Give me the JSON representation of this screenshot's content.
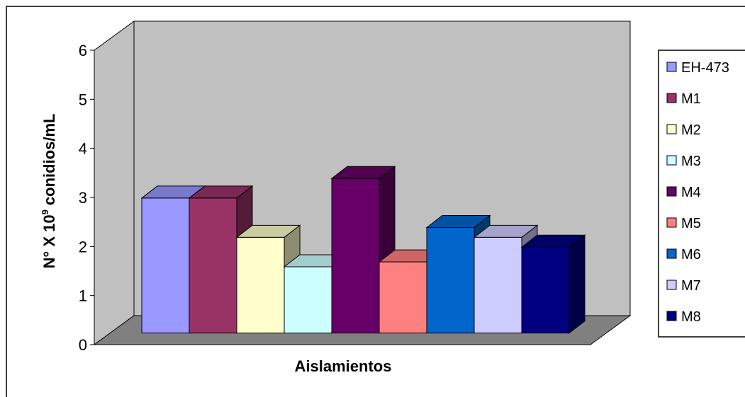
{
  "chart_data": {
    "type": "bar",
    "title": "",
    "xlabel": "Aislamientos",
    "ylabel": {
      "prefix": "N° X 10",
      "superscript": "9",
      "suffix": " conidios/mL"
    },
    "ylim": [
      0,
      6
    ],
    "yticks": [
      "0",
      "1",
      "2",
      "3",
      "4",
      "5",
      "6"
    ],
    "grid": false,
    "legend_position": "right",
    "style": "3d",
    "series": [
      {
        "name": "EH-473",
        "value": 2.75,
        "color": "#9999ff"
      },
      {
        "name": "M1",
        "value": 2.75,
        "color": "#993366"
      },
      {
        "name": "M2",
        "value": 1.95,
        "color": "#ffffcc"
      },
      {
        "name": "M3",
        "value": 1.35,
        "color": "#ccffff"
      },
      {
        "name": "M4",
        "value": 3.15,
        "color": "#660066"
      },
      {
        "name": "M5",
        "value": 1.45,
        "color": "#ff8080"
      },
      {
        "name": "M6",
        "value": 2.15,
        "color": "#0066cc"
      },
      {
        "name": "M7",
        "value": 1.95,
        "color": "#ccccff"
      },
      {
        "name": "M8",
        "value": 1.75,
        "color": "#000080"
      }
    ],
    "colors": {
      "back_wall": "#c0c0c0",
      "side_wall": "#c0c0c0",
      "floor": "#808080"
    }
  }
}
